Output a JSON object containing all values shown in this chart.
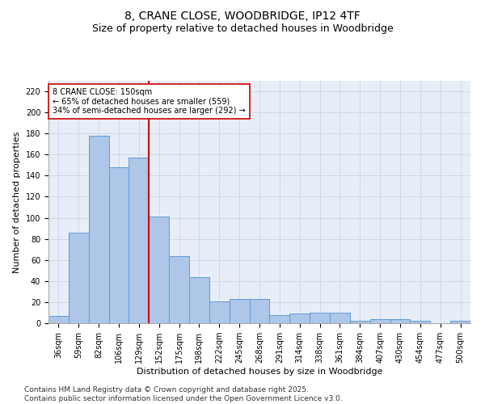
{
  "title_line1": "8, CRANE CLOSE, WOODBRIDGE, IP12 4TF",
  "title_line2": "Size of property relative to detached houses in Woodbridge",
  "xlabel": "Distribution of detached houses by size in Woodbridge",
  "ylabel": "Number of detached properties",
  "bins": [
    "36sqm",
    "59sqm",
    "82sqm",
    "106sqm",
    "129sqm",
    "152sqm",
    "175sqm",
    "198sqm",
    "222sqm",
    "245sqm",
    "268sqm",
    "291sqm",
    "314sqm",
    "338sqm",
    "361sqm",
    "384sqm",
    "407sqm",
    "430sqm",
    "454sqm",
    "477sqm",
    "500sqm"
  ],
  "values": [
    7,
    86,
    178,
    148,
    157,
    101,
    64,
    44,
    21,
    23,
    23,
    8,
    9,
    10,
    10,
    2,
    4,
    4,
    2,
    0,
    2
  ],
  "bar_color": "#aec6e8",
  "bar_edge_color": "#5b9bd5",
  "vline_x_index": 4.5,
  "vline_color": "#cc0000",
  "annotation_text": "8 CRANE CLOSE: 150sqm\n← 65% of detached houses are smaller (559)\n34% of semi-detached houses are larger (292) →",
  "annotation_box_color": "#ffffff",
  "annotation_box_edge_color": "#cc0000",
  "ylim": [
    0,
    230
  ],
  "yticks": [
    0,
    20,
    40,
    60,
    80,
    100,
    120,
    140,
    160,
    180,
    200,
    220
  ],
  "background_color": "#e8eef7",
  "footer_line1": "Contains HM Land Registry data © Crown copyright and database right 2025.",
  "footer_line2": "Contains public sector information licensed under the Open Government Licence v3.0.",
  "title1_fontsize": 10,
  "title2_fontsize": 9,
  "axis_label_fontsize": 8,
  "tick_fontsize": 7,
  "annotation_fontsize": 7,
  "footer_fontsize": 6.5
}
